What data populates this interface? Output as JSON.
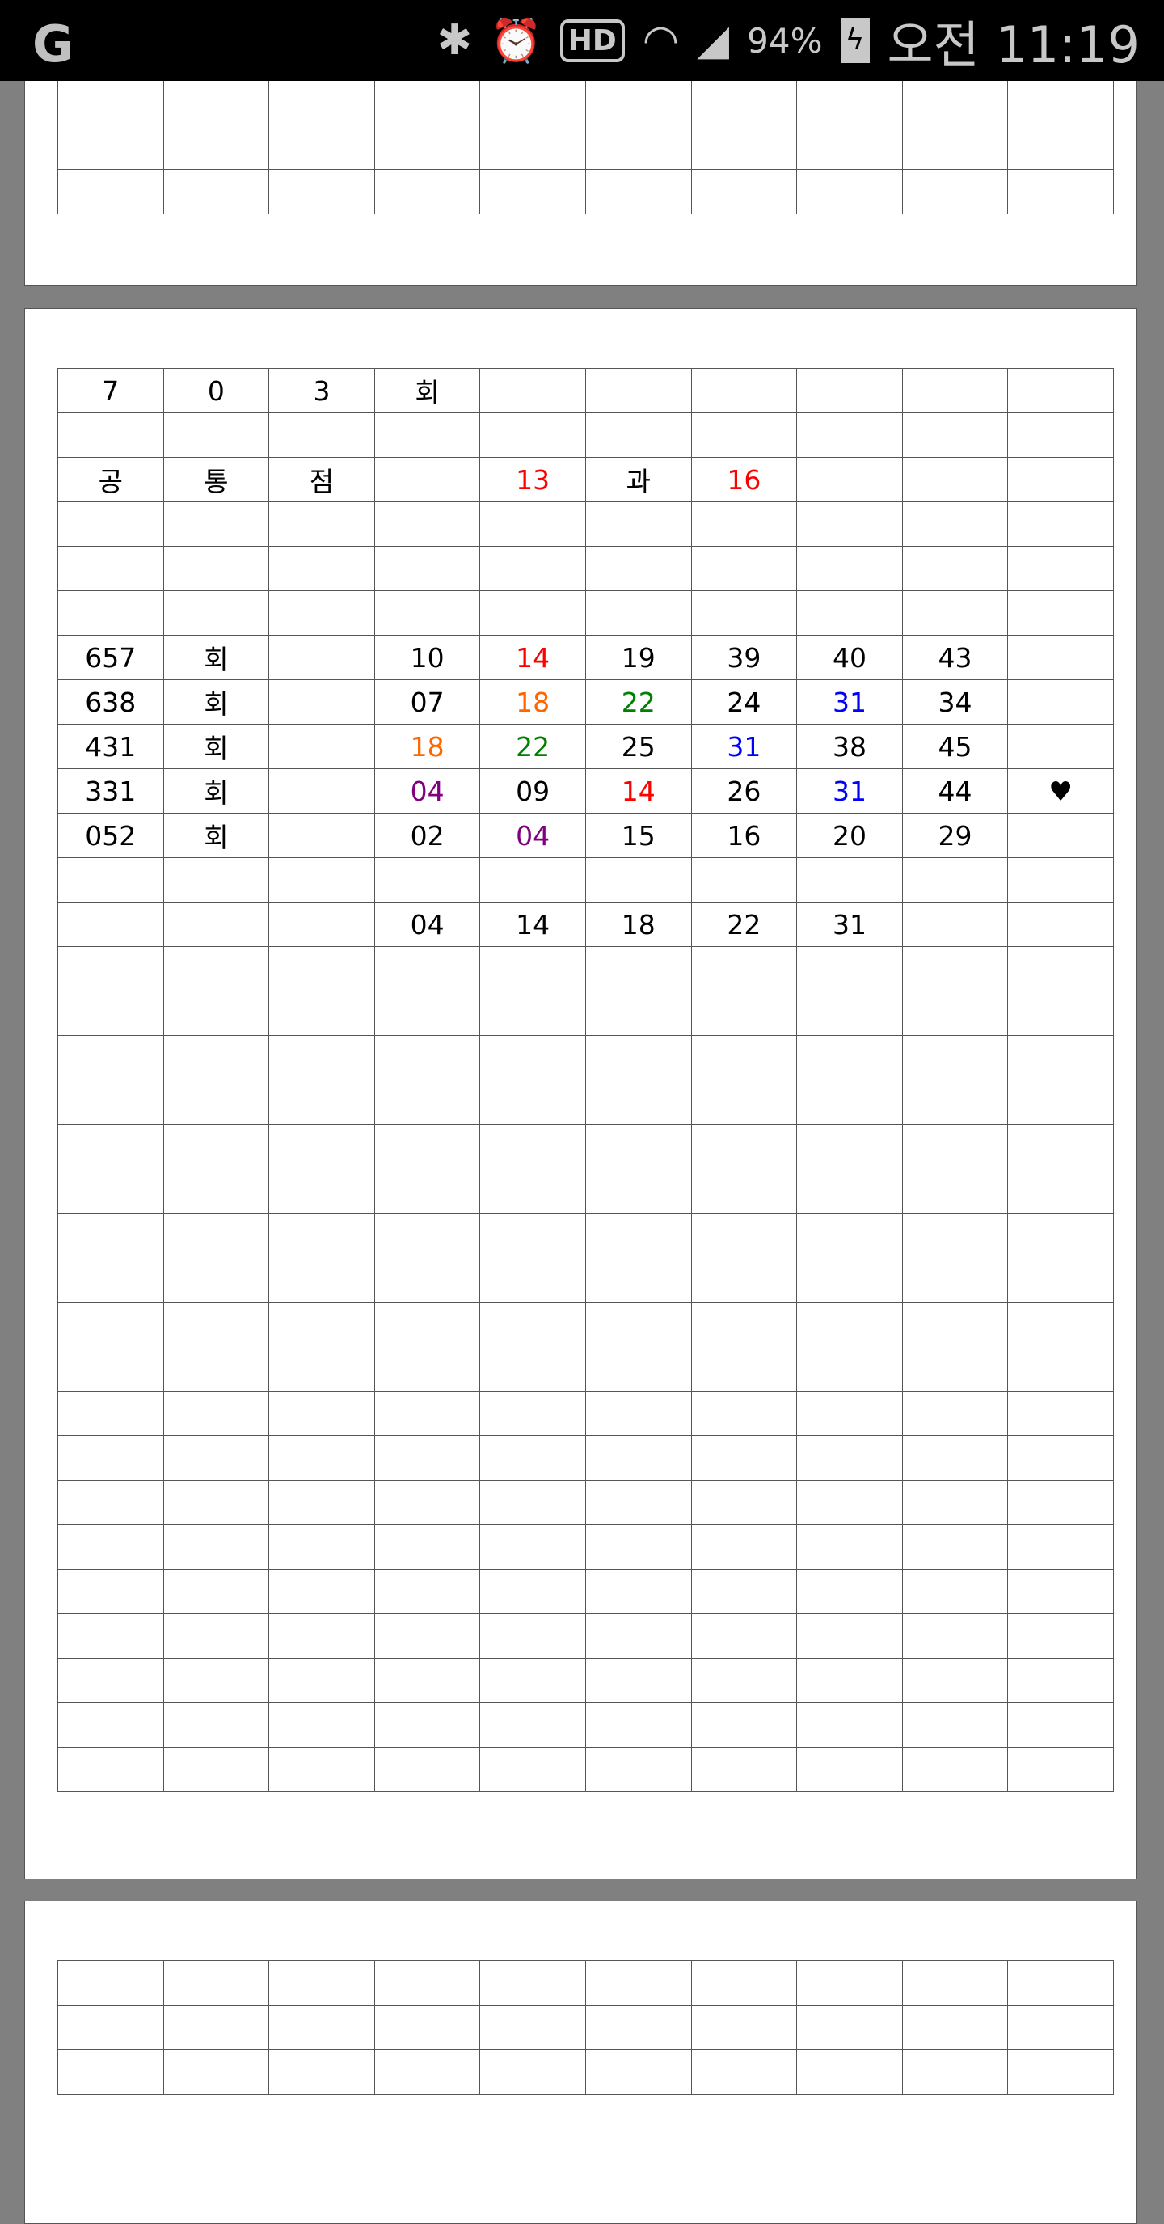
{
  "status_bar": {
    "app_icon": "g-logo-icon",
    "icons": [
      "bluetooth-icon",
      "alarm-icon",
      "hd-voice-icon",
      "wifi-icon",
      "signal-icon",
      "battery-charging-icon"
    ],
    "hd_label": "HD",
    "battery": "94%",
    "time": "오전 11:19"
  },
  "colors": {
    "red": "#ff0000",
    "orange": "#ff6600",
    "green": "#008000",
    "blue": "#0000ff",
    "purple": "#800080"
  },
  "sheet": {
    "rows": [
      [
        "7",
        "0",
        "3",
        "회",
        "",
        "",
        "",
        "",
        "",
        ""
      ],
      [
        "",
        "",
        "",
        "",
        "",
        "",
        "",
        "",
        "",
        ""
      ],
      [
        "공",
        "통",
        "점",
        "",
        {
          "t": "13",
          "c": "red"
        },
        "과",
        {
          "t": "16",
          "c": "red"
        },
        "",
        "",
        ""
      ],
      [
        "",
        "",
        "",
        "",
        "",
        "",
        "",
        "",
        "",
        ""
      ],
      [
        "",
        "",
        "",
        "",
        "",
        "",
        "",
        "",
        "",
        ""
      ],
      [
        "",
        "",
        "",
        "",
        "",
        "",
        "",
        "",
        "",
        ""
      ],
      [
        "657",
        "회",
        "",
        "10",
        {
          "t": "14",
          "c": "red"
        },
        "19",
        "39",
        "40",
        "43",
        ""
      ],
      [
        "638",
        "회",
        "",
        "07",
        {
          "t": "18",
          "c": "orange"
        },
        {
          "t": "22",
          "c": "green"
        },
        "24",
        {
          "t": "31",
          "c": "blue"
        },
        "34",
        ""
      ],
      [
        "431",
        "회",
        "",
        {
          "t": "18",
          "c": "orange"
        },
        {
          "t": "22",
          "c": "green"
        },
        "25",
        {
          "t": "31",
          "c": "blue"
        },
        "38",
        "45",
        ""
      ],
      [
        "331",
        "회",
        "",
        {
          "t": "04",
          "c": "purple"
        },
        "09",
        {
          "t": "14",
          "c": "red"
        },
        "26",
        {
          "t": "31",
          "c": "blue"
        },
        "44",
        "♥"
      ],
      [
        "052",
        "회",
        "",
        "02",
        {
          "t": "04",
          "c": "purple"
        },
        "15",
        "16",
        "20",
        "29",
        ""
      ],
      [
        "",
        "",
        "",
        "",
        "",
        "",
        "",
        "",
        "",
        ""
      ],
      [
        "",
        "",
        "",
        "04",
        "14",
        "18",
        "22",
        "31",
        "",
        ""
      ]
    ],
    "total_rows": 32
  }
}
